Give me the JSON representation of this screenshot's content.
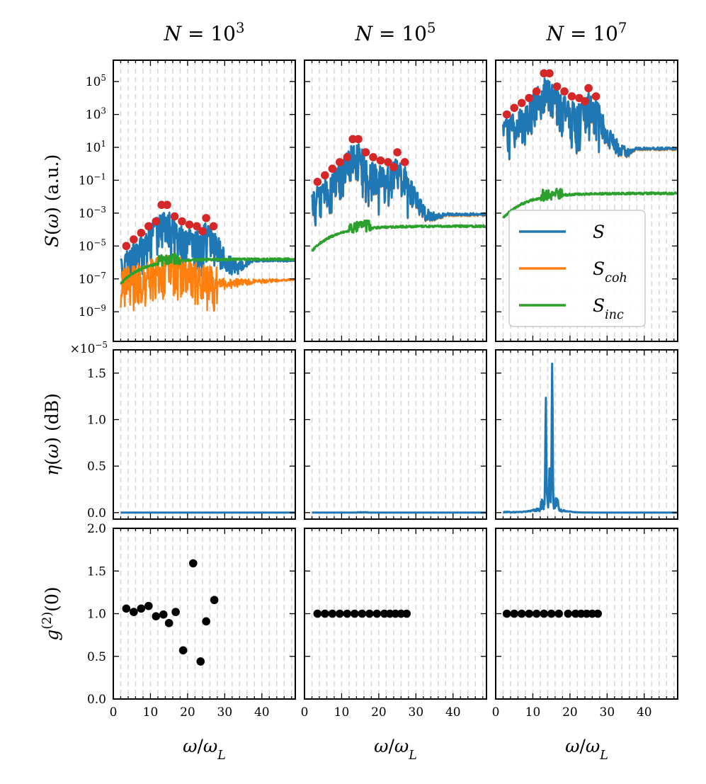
{
  "column_titles": [
    "N = 10^3",
    "N = 10^5",
    "N = 10^7"
  ],
  "ylabels": {
    "spectrum": "S(ω) (a.u.)",
    "eta": "η(ω) (dB)",
    "g2": "g^(2)(0)"
  },
  "xlabel": "ω/ω_L",
  "eta_multiplier": "×10^-5",
  "legend": {
    "position": "lower-right of top-right panel",
    "entries": [
      {
        "label": "S",
        "color": "#1f77b4"
      },
      {
        "label": "S_coh",
        "color": "#ff7f0e"
      },
      {
        "label": "S_inc",
        "color": "#2ca02c"
      }
    ]
  },
  "colors": {
    "S": "#1f77b4",
    "S_coh": "#ff7f0e",
    "S_inc": "#2ca02c",
    "peaks": "#d62728",
    "g2_points": "#000000",
    "grid": "#d9d9d9"
  },
  "chart_data": [
    {
      "type": "line",
      "panel": "spectrum",
      "column": "N = 10^3",
      "yscale": "log",
      "xlim": [
        0,
        49
      ],
      "ylim_exponents": [
        -10.8,
        6.3
      ],
      "yticks": [
        "10^-9",
        "10^-7",
        "10^-5",
        "10^-3",
        "10^-1",
        "10^1",
        "10^3",
        "10^5"
      ],
      "xticks": [
        "0",
        "10",
        "20",
        "30",
        "40"
      ],
      "grid": "vertical dashed",
      "peaks_exponent": {
        "x": [
          3.5,
          5.5,
          7.5,
          9.5,
          11.5,
          13.0,
          14.5,
          16.5,
          18.5,
          20.5,
          22.5,
          24.0,
          25.0,
          27.0
        ],
        "y": [
          -5.0,
          -4.6,
          -4.2,
          -3.8,
          -3.5,
          -2.5,
          -2.5,
          -3.2,
          -3.5,
          -3.7,
          -3.8,
          -4.1,
          -3.3,
          -3.8
        ]
      },
      "series": [
        {
          "name": "S",
          "envelope_peak_exponent": -3.2,
          "tail_exponent": -5.8
        },
        {
          "name": "S_coh",
          "tail_exponent": -7.0
        },
        {
          "name": "S_inc",
          "tail_exponent": -5.8
        }
      ]
    },
    {
      "type": "line",
      "panel": "spectrum",
      "column": "N = 10^5",
      "yscale": "log",
      "xlim": [
        0,
        49
      ],
      "ylim_exponents": [
        -10.8,
        6.3
      ],
      "peaks_exponent": {
        "x": [
          3.5,
          5.5,
          7.5,
          9.5,
          11.5,
          13.0,
          14.5,
          16.5,
          18.5,
          20.5,
          22.5,
          24.0,
          25.0,
          27.0
        ],
        "y": [
          -1.1,
          -0.7,
          -0.3,
          0.1,
          0.4,
          1.5,
          1.5,
          0.7,
          0.4,
          0.2,
          0.1,
          -0.2,
          0.7,
          0.1
        ]
      },
      "series": [
        {
          "name": "S",
          "tail_exponent": -3.0
        },
        {
          "name": "S_coh",
          "tail_exponent": -3.0
        },
        {
          "name": "S_inc",
          "tail_exponent": -3.8
        }
      ]
    },
    {
      "type": "line",
      "panel": "spectrum",
      "column": "N = 10^7",
      "yscale": "log",
      "xlim": [
        0,
        49
      ],
      "ylim_exponents": [
        -10.8,
        6.3
      ],
      "peaks_exponent": {
        "x": [
          3.0,
          5.0,
          7.0,
          9.0,
          11.0,
          13.0,
          14.5,
          16.5,
          18.5,
          20.5,
          22.5,
          24.0,
          25.0,
          27.0
        ],
        "y": [
          3.0,
          3.4,
          3.7,
          4.0,
          4.4,
          5.5,
          5.5,
          4.7,
          4.4,
          4.1,
          4.0,
          3.8,
          4.6,
          4.1
        ]
      },
      "series": [
        {
          "name": "S",
          "tail_exponent": 1.0
        },
        {
          "name": "S_coh",
          "tail_exponent": 1.0
        },
        {
          "name": "S_inc",
          "tail_exponent": -1.8
        }
      ]
    },
    {
      "type": "line",
      "panel": "eta",
      "column": "N = 10^3",
      "ylim": [
        -0.07,
        1.75
      ],
      "yticks": [
        "0.0",
        "0.5",
        "1.0",
        "1.5"
      ],
      "series": [
        {
          "name": "η",
          "values": "≈ 0 for all ω"
        }
      ]
    },
    {
      "type": "line",
      "panel": "eta",
      "column": "N = 10^5",
      "ylim": [
        -0.07,
        1.75
      ],
      "series": [
        {
          "name": "η",
          "values": "≈ 0 for all ω"
        }
      ]
    },
    {
      "type": "line",
      "panel": "eta",
      "column": "N = 10^7",
      "ylim": [
        -0.07,
        1.75
      ],
      "peaks": {
        "x": [
          13.5,
          14.5,
          15.2
        ],
        "y": [
          1.15,
          0.35,
          1.55
        ]
      },
      "background": 0.04
    },
    {
      "type": "scatter",
      "panel": "g2",
      "column": "N = 10^3",
      "ylim": [
        0.0,
        2.0
      ],
      "yticks": [
        "0.0",
        "0.5",
        "1.0",
        "1.5",
        "2.0"
      ],
      "xticks": [
        "0",
        "10",
        "20",
        "30",
        "40"
      ],
      "x": [
        3.5,
        5.5,
        7.5,
        9.5,
        11.5,
        13.5,
        15.0,
        16.8,
        18.8,
        21.5,
        23.5,
        25.0,
        27.2
      ],
      "y": [
        1.06,
        1.02,
        1.06,
        1.09,
        0.97,
        0.99,
        0.89,
        1.02,
        0.57,
        1.59,
        0.44,
        0.91,
        1.16
      ]
    },
    {
      "type": "scatter",
      "panel": "g2",
      "column": "N = 10^5",
      "ylim": [
        0.0,
        2.0
      ],
      "x": [
        3.5,
        5.5,
        7.5,
        9.5,
        11.5,
        13.5,
        15.5,
        17.5,
        19.5,
        21.5,
        23.0,
        24.5,
        26.0,
        27.5
      ],
      "y": [
        1.0,
        1.0,
        1.0,
        1.0,
        1.0,
        1.0,
        1.0,
        1.0,
        1.0,
        1.0,
        1.0,
        1.0,
        1.0,
        1.0
      ]
    },
    {
      "type": "scatter",
      "panel": "g2",
      "column": "N = 10^7",
      "ylim": [
        0.0,
        2.0
      ],
      "x": [
        3.0,
        5.0,
        7.0,
        9.0,
        11.0,
        13.0,
        15.0,
        17.0,
        19.5,
        21.5,
        23.0,
        24.5,
        26.0,
        27.5
      ],
      "y": [
        1.0,
        1.0,
        1.0,
        1.0,
        1.0,
        1.0,
        1.0,
        1.0,
        1.0,
        1.0,
        1.0,
        1.0,
        1.0,
        1.0
      ]
    }
  ]
}
